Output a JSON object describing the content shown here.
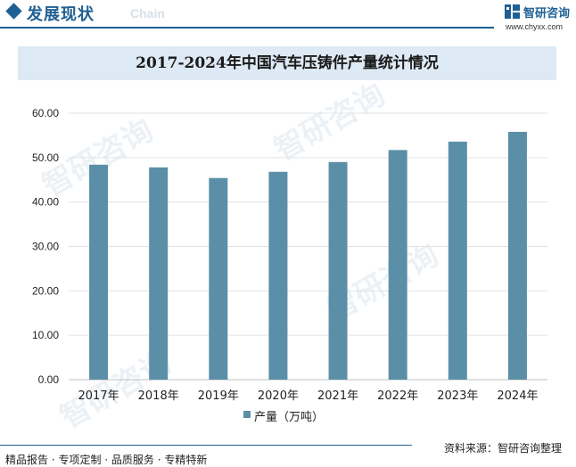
{
  "header": {
    "section_title": "发展现状",
    "section_sub": "Chain",
    "brand_name": "智研咨询",
    "brand_url": "www.chyxx.com"
  },
  "watermark_text": "智研咨询",
  "chart_data": {
    "type": "bar",
    "title": "2017-2024年中国汽车压铸件产量统计情况",
    "categories": [
      "2017年",
      "2018年",
      "2019年",
      "2020年",
      "2021年",
      "2022年",
      "2023年",
      "2024年"
    ],
    "series": [
      {
        "name": "产量（万吨）",
        "values": [
          48.4,
          47.8,
          45.4,
          46.8,
          49.0,
          51.7,
          53.6,
          55.8
        ],
        "color": "#5b8fa8"
      }
    ],
    "ylim": [
      0,
      60
    ],
    "yticks": [
      "0.00",
      "10.00",
      "20.00",
      "30.00",
      "40.00",
      "50.00",
      "60.00"
    ],
    "grid": true,
    "legend_position": "bottom"
  },
  "footer": {
    "left": "精品报告 · 专项定制 · 品质服务 · 专精特新",
    "right": "资料来源：智研咨询整理"
  },
  "colors": {
    "brand": "#1f5f92",
    "bar": "#5b8fa8",
    "title_band": "#dde9f4"
  }
}
